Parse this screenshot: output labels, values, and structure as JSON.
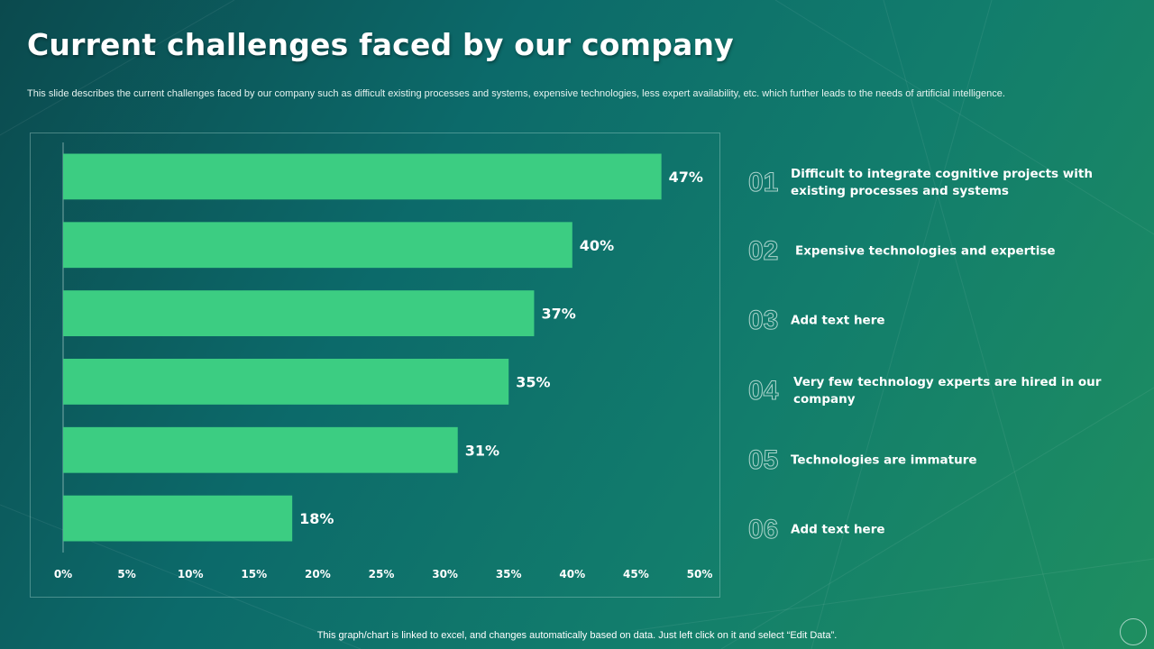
{
  "slide": {
    "title": "Current challenges faced by our company",
    "subtitle": "This slide describes the current challenges faced by our company such as difficult existing processes and systems, expensive technologies, less expert availability, etc. which further leads to the needs of artificial intelligence.",
    "footer": "This graph/chart is linked to excel, and changes automatically based on data. Just left click on it and select “Edit Data”."
  },
  "legend": [
    {
      "number": "01",
      "text": "Difficult to integrate cognitive projects with existing processes and systems"
    },
    {
      "number": "02",
      "text": "Expensive technologies and expertise"
    },
    {
      "number": "03",
      "text": "Add text here"
    },
    {
      "number": "04",
      "text": "Very few technology experts are hired in our company"
    },
    {
      "number": "05",
      "text": "Technologies are immature"
    },
    {
      "number": "06",
      "text": "Add text here"
    }
  ],
  "chart_data": {
    "type": "bar",
    "orientation": "horizontal",
    "categories": [
      "01",
      "02",
      "03",
      "04",
      "05",
      "06"
    ],
    "values": [
      47,
      40,
      37,
      35,
      31,
      18
    ],
    "data_labels": [
      "47%",
      "40%",
      "37%",
      "35%",
      "31%",
      "18%"
    ],
    "xlim": [
      0,
      50
    ],
    "xticks": [
      "0%",
      "5%",
      "10%",
      "15%",
      "20%",
      "25%",
      "30%",
      "35%",
      "40%",
      "45%",
      "50%"
    ],
    "title": "",
    "xlabel": "",
    "ylabel": "",
    "grid": false,
    "bar_color": "#3ccd82"
  }
}
